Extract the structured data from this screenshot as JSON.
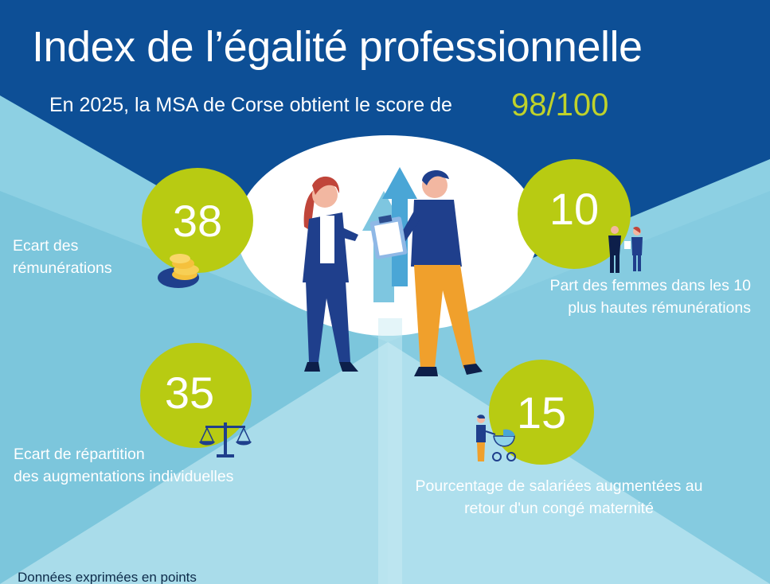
{
  "title": "Index de l’égalité professionnelle",
  "subtitle": "En 2025, la MSA de Corse obtient le score de",
  "score": "98/100",
  "indicators": [
    {
      "value": "38",
      "label_lines": [
        "Ecart des",
        "rémunérations"
      ],
      "icon": "coins-icon"
    },
    {
      "value": "10",
      "label_lines": [
        "Part des femmes dans les 10",
        "plus hautes rémunérations"
      ],
      "icon": "business-people-icon"
    },
    {
      "value": "35",
      "label_lines": [
        "Ecart de répartition",
        "des augmentations individuelles"
      ],
      "icon": "balance-scale-icon"
    },
    {
      "value": "15",
      "label_lines": [
        "Pourcentage de salariées augmentées au",
        "retour d'un congé maternité"
      ],
      "icon": "stroller-icon"
    }
  ],
  "footnote": "Données exprimées en points",
  "illustration": "woman-man-clipboard-illustration",
  "colors": {
    "header_blue": "#0d4f96",
    "accent_green": "#b8cb12",
    "sky": "#8dd0e3",
    "score_text": "#bfd22b"
  }
}
